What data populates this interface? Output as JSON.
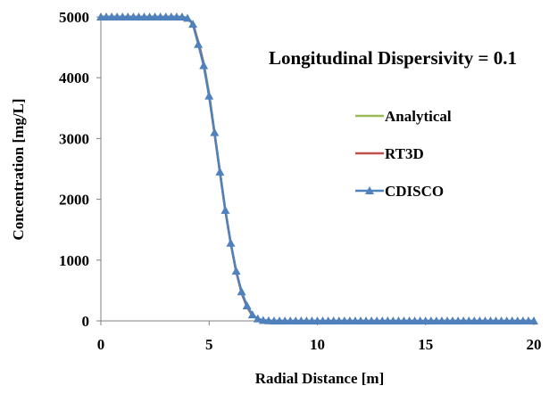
{
  "chart_data": {
    "type": "line",
    "title": "Longitudinal Dispersivity = 0.1",
    "xlabel": "Radial Distance [m]",
    "ylabel": "Concentration [mg/L]",
    "xlim": [
      0,
      20
    ],
    "ylim": [
      0,
      5000
    ],
    "xticks": [
      0,
      5,
      10,
      15,
      20
    ],
    "yticks": [
      0,
      1000,
      2000,
      3000,
      4000,
      5000
    ],
    "grid": false,
    "legend_position": "right",
    "x": [
      0,
      0.25,
      0.5,
      0.75,
      1,
      1.25,
      1.5,
      1.75,
      2,
      2.25,
      2.5,
      2.75,
      3,
      3.25,
      3.5,
      3.75,
      4,
      4.25,
      4.5,
      4.75,
      5,
      5.25,
      5.5,
      5.75,
      6,
      6.25,
      6.5,
      6.75,
      7,
      7.25,
      7.5,
      7.75,
      8,
      8.25,
      8.5,
      8.75,
      9,
      9.25,
      9.5,
      9.75,
      10,
      10.25,
      10.5,
      10.75,
      11,
      11.25,
      11.5,
      11.75,
      12,
      12.25,
      12.5,
      12.75,
      13,
      13.25,
      13.5,
      13.75,
      14,
      14.25,
      14.5,
      14.75,
      15,
      15.25,
      15.5,
      15.75,
      16,
      16.25,
      16.5,
      16.75,
      17,
      17.25,
      17.5,
      17.75,
      18,
      18.25,
      18.5,
      18.75,
      19,
      19.25,
      19.5,
      19.75,
      20
    ],
    "series": [
      {
        "name": "Analytical",
        "color": "#9bbb59",
        "marker": "none",
        "values": [
          5000,
          5000,
          5000,
          5000,
          5000,
          5000,
          5000,
          5000,
          5000,
          5000,
          5000,
          5000,
          5000,
          5000,
          5000,
          5000,
          4985,
          4900,
          4600,
          4250,
          3750,
          3100,
          2450,
          1820,
          1280,
          820,
          460,
          230,
          90,
          30,
          10,
          3,
          0,
          0,
          0,
          0,
          0,
          0,
          0,
          0,
          0,
          0,
          0,
          0,
          0,
          0,
          0,
          0,
          0,
          0,
          0,
          0,
          0,
          0,
          0,
          0,
          0,
          0,
          0,
          0,
          0,
          0,
          0,
          0,
          0,
          0,
          0,
          0,
          0,
          0,
          0,
          0,
          0,
          0,
          0,
          0,
          0,
          0,
          0,
          0,
          0
        ]
      },
      {
        "name": "RT3D",
        "color": "#c0504d",
        "marker": "none",
        "values": [
          5000,
          5000,
          5000,
          5000,
          5000,
          5000,
          5000,
          5000,
          5000,
          5000,
          5000,
          5000,
          5000,
          5000,
          5000,
          5000,
          4980,
          4890,
          4580,
          4220,
          3700,
          3080,
          2440,
          1810,
          1270,
          810,
          460,
          230,
          90,
          30,
          10,
          3,
          0,
          0,
          0,
          0,
          0,
          0,
          0,
          0,
          0,
          0,
          0,
          0,
          0,
          0,
          0,
          0,
          0,
          0,
          0,
          0,
          0,
          0,
          0,
          0,
          0,
          0,
          0,
          0,
          0,
          0,
          0,
          0,
          0,
          0,
          0,
          0,
          0,
          0,
          0,
          0,
          0,
          0,
          0,
          0,
          0,
          0,
          0,
          0,
          0
        ]
      },
      {
        "name": "CDISCO",
        "color": "#4f81bd",
        "marker": "triangle",
        "values": [
          5000,
          5000,
          5000,
          5000,
          5000,
          5000,
          5000,
          5000,
          5000,
          5000,
          5000,
          5000,
          5000,
          5000,
          5000,
          5000,
          4980,
          4880,
          4550,
          4200,
          3700,
          3100,
          2450,
          1820,
          1280,
          820,
          480,
          250,
          100,
          35,
          10,
          3,
          0,
          0,
          0,
          0,
          0,
          0,
          0,
          0,
          0,
          0,
          0,
          0,
          0,
          0,
          0,
          0,
          0,
          0,
          0,
          0,
          0,
          0,
          0,
          0,
          0,
          0,
          0,
          0,
          0,
          0,
          0,
          0,
          0,
          0,
          0,
          0,
          0,
          0,
          0,
          0,
          0,
          0,
          0,
          0,
          0,
          0,
          0,
          0,
          0
        ]
      }
    ]
  }
}
